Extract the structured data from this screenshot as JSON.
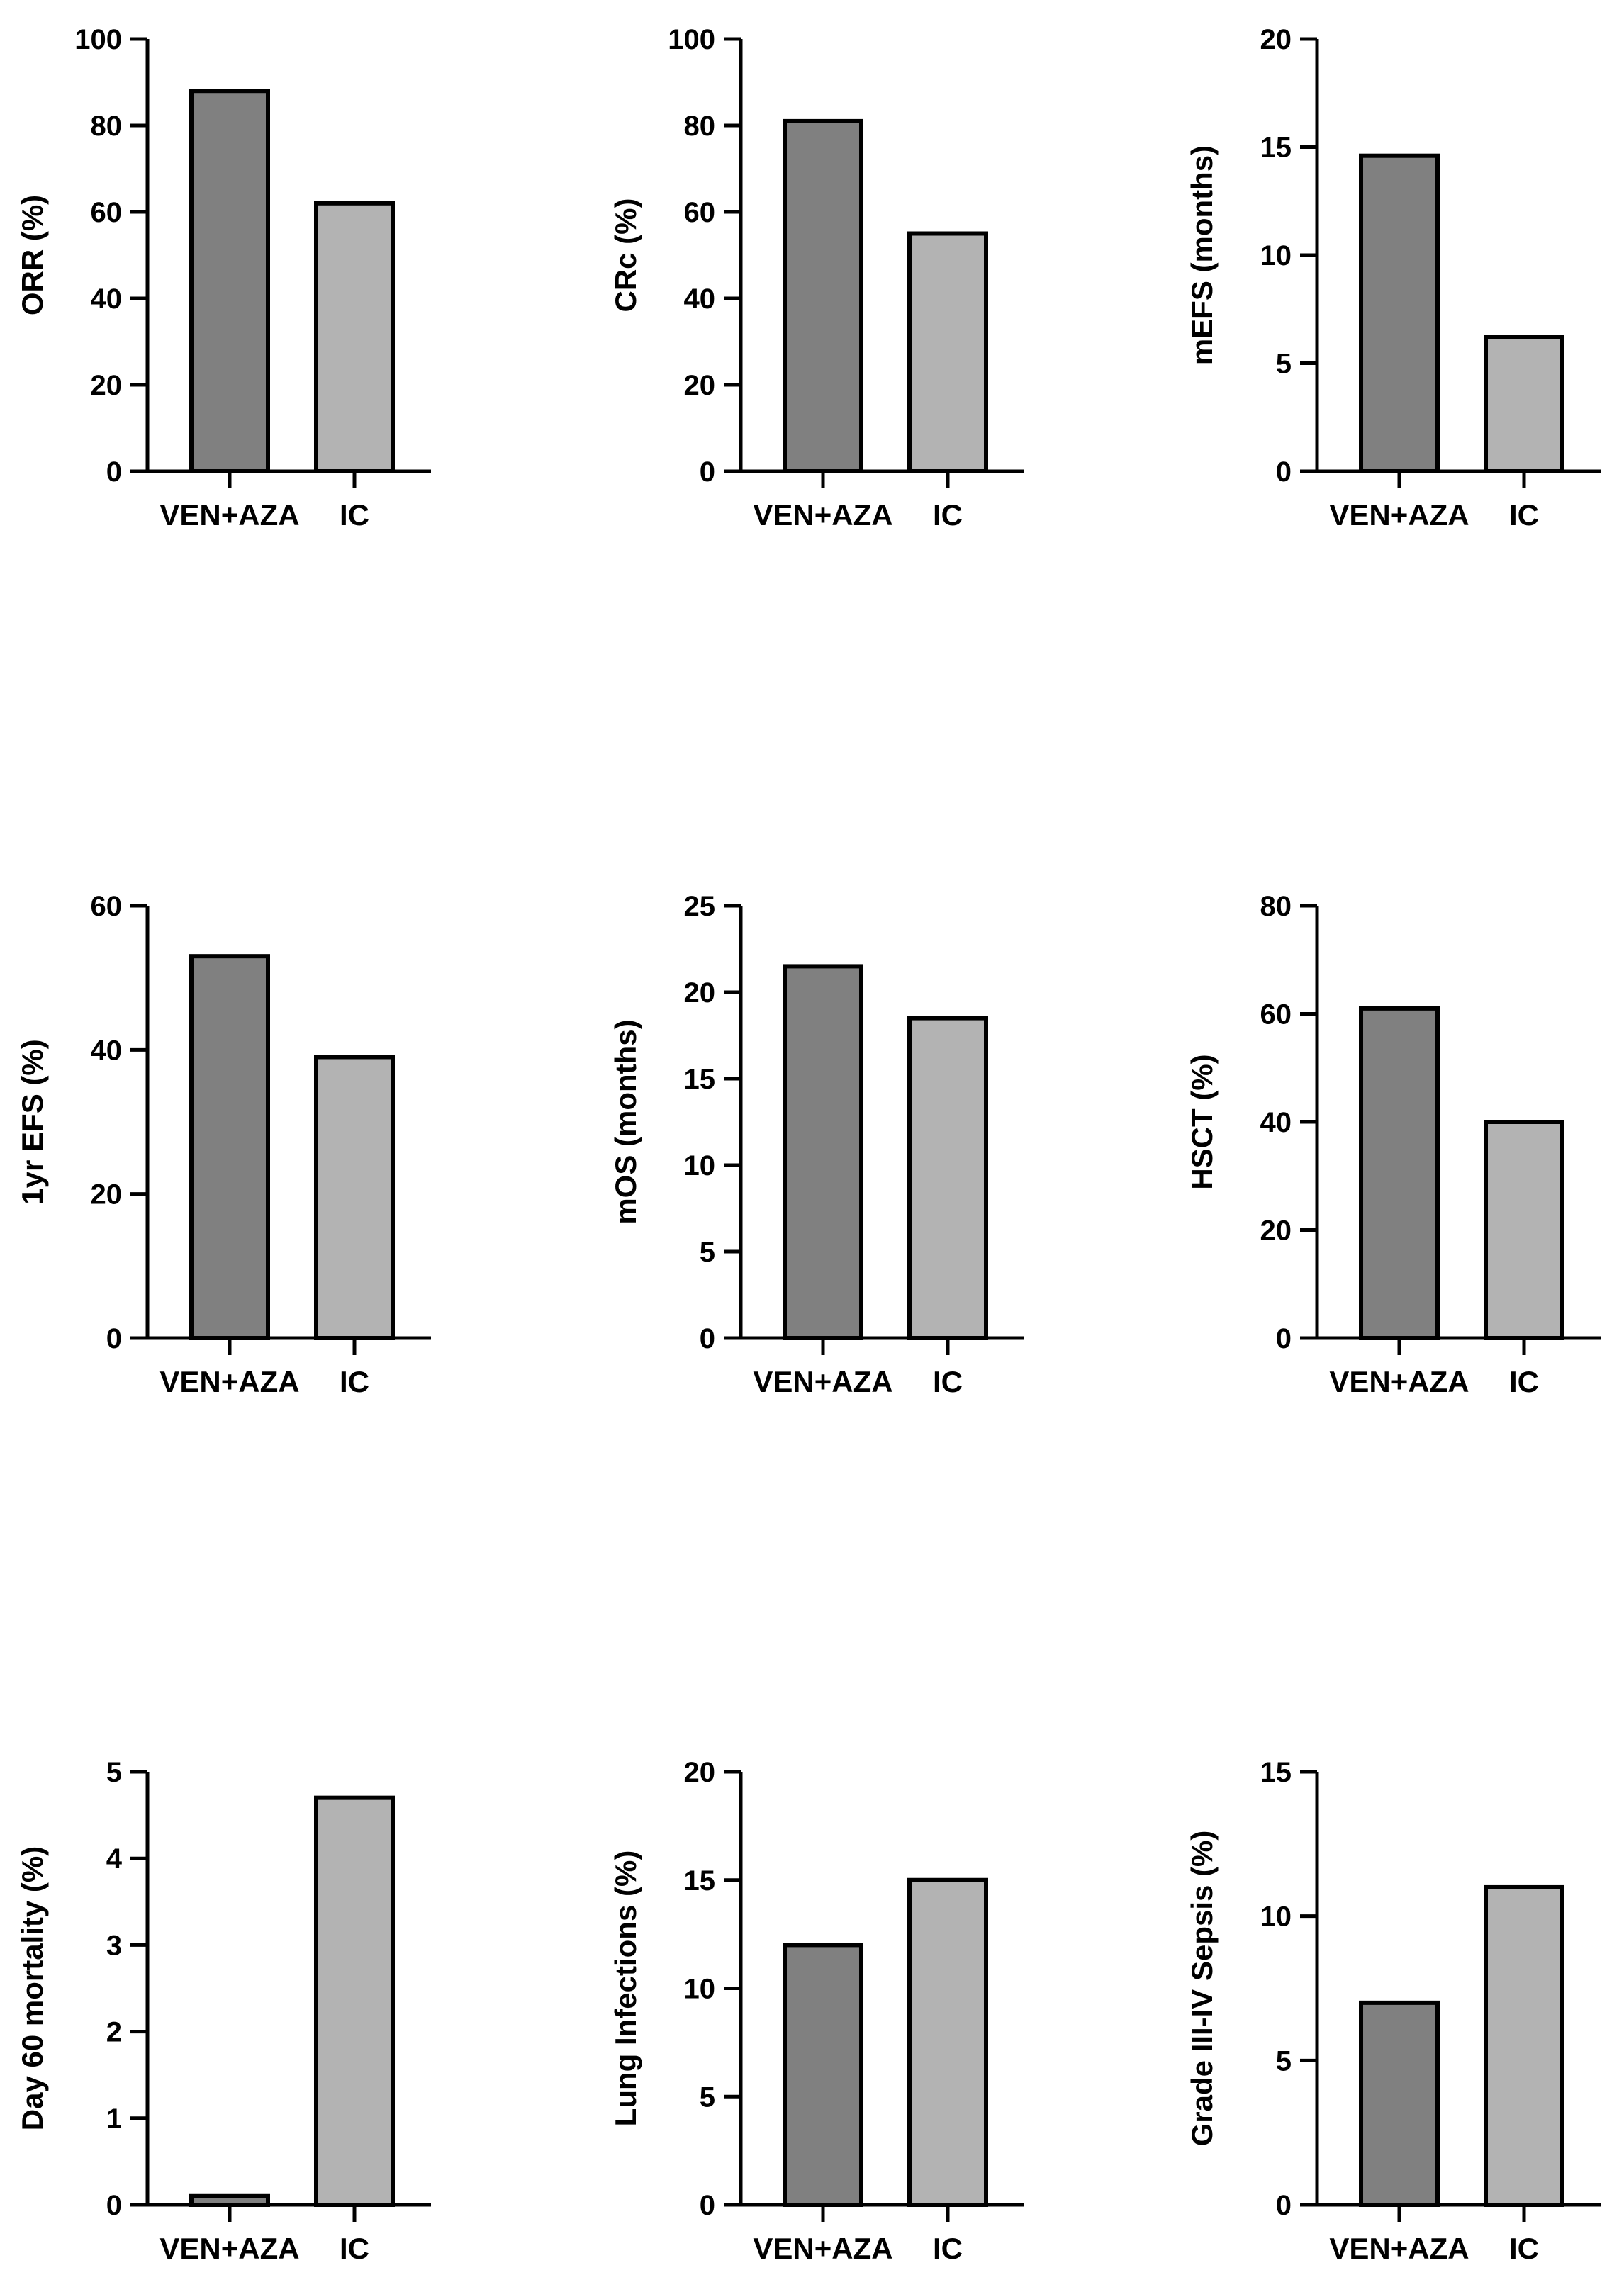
{
  "colors": {
    "venaza": "#808080",
    "ic": "#b3b3b3",
    "axis": "#000000",
    "background": "#ffffff"
  },
  "chart_data": [
    {
      "type": "bar",
      "ylabel": "ORR (%)",
      "categories": [
        "VEN+AZA",
        "IC"
      ],
      "values": [
        88,
        62
      ],
      "ylim": [
        0,
        100
      ],
      "yticks": [
        0,
        20,
        40,
        60,
        80,
        100
      ]
    },
    {
      "type": "bar",
      "ylabel": "CRc (%)",
      "categories": [
        "VEN+AZA",
        "IC"
      ],
      "values": [
        81,
        55
      ],
      "ylim": [
        0,
        100
      ],
      "yticks": [
        0,
        20,
        40,
        60,
        80,
        100
      ]
    },
    {
      "type": "bar",
      "ylabel": "mEFS (months)",
      "categories": [
        "VEN+AZA",
        "IC"
      ],
      "values": [
        14.6,
        6.2
      ],
      "ylim": [
        0,
        20
      ],
      "yticks": [
        0,
        5,
        10,
        15,
        20
      ]
    },
    {
      "type": "bar",
      "ylabel": "1yr EFS (%)",
      "categories": [
        "VEN+AZA",
        "IC"
      ],
      "values": [
        53,
        39
      ],
      "ylim": [
        0,
        60
      ],
      "yticks": [
        0,
        20,
        40,
        60
      ]
    },
    {
      "type": "bar",
      "ylabel": "mOS (months)",
      "categories": [
        "VEN+AZA",
        "IC"
      ],
      "values": [
        21.5,
        18.5
      ],
      "ylim": [
        0,
        25
      ],
      "yticks": [
        0,
        5,
        10,
        15,
        20,
        25
      ]
    },
    {
      "type": "bar",
      "ylabel": "HSCT (%)",
      "categories": [
        "VEN+AZA",
        "IC"
      ],
      "values": [
        61,
        40
      ],
      "ylim": [
        0,
        80
      ],
      "yticks": [
        0,
        20,
        40,
        60,
        80
      ]
    },
    {
      "type": "bar",
      "ylabel": "Day 60 mortality (%)",
      "categories": [
        "VEN+AZA",
        "IC"
      ],
      "values": [
        0.1,
        4.7
      ],
      "ylim": [
        0,
        5
      ],
      "yticks": [
        0,
        1,
        2,
        3,
        4,
        5
      ]
    },
    {
      "type": "bar",
      "ylabel": "Lung Infections (%)",
      "categories": [
        "VEN+AZA",
        "IC"
      ],
      "values": [
        12,
        15
      ],
      "ylim": [
        0,
        20
      ],
      "yticks": [
        0,
        5,
        10,
        15,
        20
      ]
    },
    {
      "type": "bar",
      "ylabel": "Grade III-IV Sepsis (%)",
      "categories": [
        "VEN+AZA",
        "IC"
      ],
      "values": [
        7,
        11
      ],
      "ylim": [
        0,
        15
      ],
      "yticks": [
        0,
        5,
        10,
        15
      ]
    }
  ]
}
